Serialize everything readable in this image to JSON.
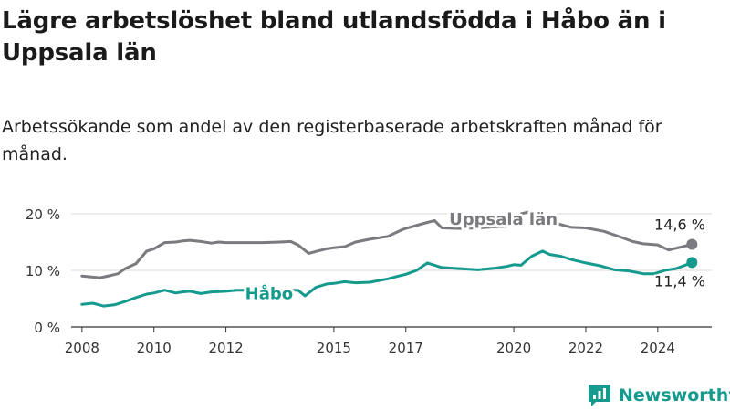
{
  "title": "Lägre arbetslöshet bland utlandsfödda i Håbo än i Uppsala län",
  "subtitle": "Arbetssökande som andel av den registerbaserade arbetskraften månad för månad.",
  "brand": {
    "name": "Newsworthy",
    "color": "#159a8d"
  },
  "chart_data": {
    "type": "line",
    "ylim": [
      0,
      20
    ],
    "xlim": [
      2007.7,
      2025.5
    ],
    "y_ticks": [
      {
        "value": 0,
        "label": "0 %"
      },
      {
        "value": 10,
        "label": "10 %"
      },
      {
        "value": 20,
        "label": "20 %"
      }
    ],
    "x_ticks": [
      {
        "value": 2008,
        "label": "2008"
      },
      {
        "value": 2010,
        "label": "2010"
      },
      {
        "value": 2012,
        "label": "2012"
      },
      {
        "value": 2015,
        "label": "2015"
      },
      {
        "value": 2017,
        "label": "2017"
      },
      {
        "value": 2020,
        "label": "2020"
      },
      {
        "value": 2022,
        "label": "2022"
      },
      {
        "value": 2024,
        "label": "2024"
      }
    ],
    "grid": "horizontal",
    "series": [
      {
        "name": "Uppsala län",
        "color": "#7a7a7f",
        "end_label": "14,6 %",
        "x": [
          2008.0,
          2008.5,
          2008.8,
          2009.0,
          2009.2,
          2009.5,
          2009.8,
          2010.0,
          2010.3,
          2010.6,
          2010.8,
          2011.0,
          2011.3,
          2011.6,
          2011.8,
          2012.0,
          2012.5,
          2013.0,
          2013.5,
          2013.8,
          2014.0,
          2014.3,
          2014.6,
          2014.8,
          2015.0,
          2015.3,
          2015.6,
          2016.0,
          2016.5,
          2016.9,
          2017.0,
          2017.5,
          2017.8,
          2018.0,
          2018.5,
          2019.0,
          2019.5,
          2019.8,
          2020.0,
          2020.2,
          2020.4,
          2020.7,
          2021.0,
          2021.3,
          2021.6,
          2022.0,
          2022.5,
          2023.0,
          2023.3,
          2023.6,
          2024.0,
          2024.3,
          2024.7,
          2024.95
        ],
        "values": [
          9.0,
          8.7,
          9.1,
          9.4,
          10.3,
          11.2,
          13.4,
          13.8,
          14.9,
          15.0,
          15.2,
          15.3,
          15.1,
          14.8,
          15.0,
          14.9,
          14.9,
          14.9,
          15.0,
          15.1,
          14.5,
          13.0,
          13.5,
          13.8,
          14.0,
          14.2,
          15.0,
          15.5,
          16.0,
          17.2,
          17.4,
          18.3,
          18.8,
          17.5,
          17.4,
          17.5,
          17.7,
          17.8,
          18.0,
          20.0,
          20.3,
          19.6,
          18.3,
          18.1,
          17.6,
          17.5,
          16.9,
          15.8,
          15.1,
          14.7,
          14.5,
          13.6,
          14.2,
          14.6
        ]
      },
      {
        "name": "Håbo",
        "color": "#159a8d",
        "end_label": "11,4 %",
        "x": [
          2008.0,
          2008.3,
          2008.6,
          2008.9,
          2009.2,
          2009.5,
          2009.8,
          2010.0,
          2010.3,
          2010.6,
          2010.8,
          2011.0,
          2011.3,
          2011.6,
          2012.0,
          2012.3,
          2012.6,
          2012.9,
          2013.5,
          2014.0,
          2014.2,
          2014.5,
          2014.8,
          2015.0,
          2015.3,
          2015.6,
          2016.0,
          2016.5,
          2016.8,
          2017.0,
          2017.3,
          2017.6,
          2018.0,
          2018.5,
          2019.0,
          2019.5,
          2019.8,
          2020.0,
          2020.2,
          2020.5,
          2020.8,
          2021.0,
          2021.3,
          2021.6,
          2022.0,
          2022.4,
          2022.8,
          2023.2,
          2023.6,
          2023.9,
          2024.2,
          2024.5,
          2024.8,
          2024.95
        ],
        "values": [
          4.0,
          4.2,
          3.7,
          3.9,
          4.5,
          5.2,
          5.8,
          6.0,
          6.5,
          6.0,
          6.2,
          6.3,
          5.9,
          6.2,
          6.3,
          6.5,
          6.5,
          6.4,
          6.5,
          6.5,
          5.5,
          7.0,
          7.6,
          7.7,
          8.0,
          7.8,
          7.9,
          8.5,
          9.0,
          9.3,
          10.0,
          11.3,
          10.5,
          10.3,
          10.1,
          10.4,
          10.7,
          11.0,
          10.9,
          12.5,
          13.4,
          12.8,
          12.5,
          11.9,
          11.3,
          10.8,
          10.1,
          9.9,
          9.4,
          9.4,
          10.0,
          10.3,
          11.0,
          11.4
        ]
      }
    ]
  }
}
